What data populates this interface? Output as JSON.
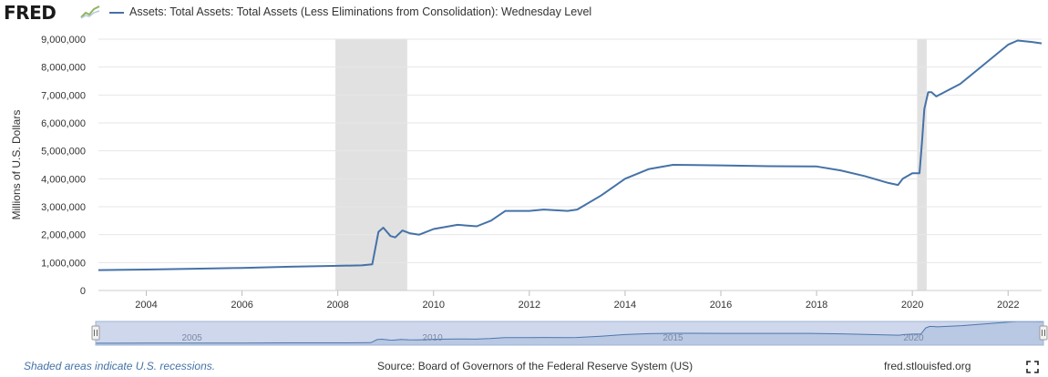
{
  "header": {
    "logo_text": "FRED",
    "logo_icon": "fred-chart-icon",
    "legend_label": "Assets: Total Assets: Total Assets (Less Eliminations from Consolidation): Wednesday Level"
  },
  "footer": {
    "recession_note": "Shaded areas indicate U.S. recessions.",
    "source": "Source: Board of Governors of the Federal Reserve System (US)",
    "url": "fred.stlouisfed.org",
    "fullscreen_icon": "fullscreen-icon"
  },
  "colors": {
    "series": "#4572a7",
    "recession": "#e1e1e1",
    "navigator_fill": "#d5dfee",
    "navigator_bg": "#f0f3f8",
    "grid": "#e6e6e6"
  },
  "navigator": {
    "tick_labels": [
      "2005",
      "2010",
      "2015",
      "2020"
    ]
  },
  "chart_data": {
    "type": "line",
    "title": "Assets: Total Assets: Total Assets (Less Eliminations from Consolidation): Wednesday Level",
    "xlabel": "",
    "ylabel": "Millions of U.S. Dollars",
    "xlim": [
      2003.0,
      2022.7
    ],
    "ylim": [
      0,
      9000000
    ],
    "yticks": [
      0,
      1000000,
      2000000,
      3000000,
      4000000,
      5000000,
      6000000,
      7000000,
      8000000,
      9000000
    ],
    "ytick_labels": [
      "0",
      "1,000,000",
      "2,000,000",
      "3,000,000",
      "4,000,000",
      "5,000,000",
      "6,000,000",
      "7,000,000",
      "8,000,000",
      "9,000,000"
    ],
    "xticks": [
      2004,
      2006,
      2008,
      2010,
      2012,
      2014,
      2016,
      2018,
      2020,
      2022
    ],
    "xtick_labels": [
      "2004",
      "2006",
      "2008",
      "2010",
      "2012",
      "2014",
      "2016",
      "2018",
      "2020",
      "2022"
    ],
    "grid": "horizontal",
    "recessions": [
      [
        2007.95,
        2009.45
      ],
      [
        2020.1,
        2020.3
      ]
    ],
    "series": [
      {
        "name": "Assets: Total Assets: Total Assets (Less Eliminations from Consolidation): Wednesday Level",
        "x": [
          2003.0,
          2004.0,
          2005.0,
          2006.0,
          2007.0,
          2007.9,
          2008.5,
          2008.72,
          2008.85,
          2008.95,
          2009.1,
          2009.2,
          2009.35,
          2009.5,
          2009.7,
          2010.0,
          2010.5,
          2010.9,
          2011.2,
          2011.5,
          2012.0,
          2012.3,
          2012.8,
          2013.0,
          2013.5,
          2014.0,
          2014.5,
          2015.0,
          2016.0,
          2017.0,
          2018.0,
          2018.5,
          2019.0,
          2019.5,
          2019.7,
          2019.8,
          2020.0,
          2020.15,
          2020.2,
          2020.25,
          2020.33,
          2020.4,
          2020.5,
          2021.0,
          2021.5,
          2022.0,
          2022.2,
          2022.5,
          2022.7
        ],
        "y": [
          730000,
          750000,
          780000,
          810000,
          850000,
          880000,
          900000,
          940000,
          2100000,
          2250000,
          1950000,
          1900000,
          2150000,
          2050000,
          2000000,
          2200000,
          2350000,
          2300000,
          2500000,
          2850000,
          2850000,
          2900000,
          2850000,
          2900000,
          3400000,
          4000000,
          4350000,
          4500000,
          4480000,
          4450000,
          4440000,
          4300000,
          4100000,
          3850000,
          3780000,
          4000000,
          4200000,
          4200000,
          5300000,
          6500000,
          7100000,
          7100000,
          6950000,
          7400000,
          8100000,
          8800000,
          8950000,
          8900000,
          8850000
        ]
      }
    ]
  }
}
